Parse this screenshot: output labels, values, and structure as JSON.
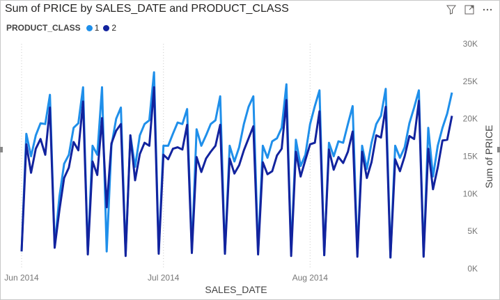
{
  "header": {
    "title": "Sum of PRICE by SALES_DATE and PRODUCT_CLASS",
    "icons": [
      "filter-icon",
      "focus-mode-icon",
      "more-options-icon"
    ]
  },
  "legend": {
    "title": "PRODUCT_CLASS",
    "items": [
      {
        "label": "1",
        "color": "#1f8fea"
      },
      {
        "label": "2",
        "color": "#12239e"
      }
    ]
  },
  "chart_data": {
    "type": "line",
    "title": "Sum of PRICE by SALES_DATE and PRODUCT_CLASS",
    "xlabel": "SALES_DATE",
    "ylabel": "Sum of PRICE",
    "x_start": "2014-06-01",
    "x_ticks": [
      {
        "label": "Jun 2014",
        "date": "2014-06-01"
      },
      {
        "label": "Jul 2014",
        "date": "2014-07-01"
      },
      {
        "label": "Aug 2014",
        "date": "2014-08-01"
      }
    ],
    "y_ticks": [
      {
        "label": "0K",
        "value": 0
      },
      {
        "label": "5K",
        "value": 5000
      },
      {
        "label": "10K",
        "value": 10000
      },
      {
        "label": "15K",
        "value": 15000
      },
      {
        "label": "20K",
        "value": 20000
      },
      {
        "label": "25K",
        "value": 25000
      },
      {
        "label": "30K",
        "value": 30000
      }
    ],
    "ylim": [
      0,
      30000
    ],
    "legend_position": "top-left",
    "series": [
      {
        "name": "1",
        "color": "#1f8fea",
        "values": [
          2300,
          18000,
          15000,
          17800,
          19400,
          19300,
          23200,
          3000,
          9600,
          14000,
          15200,
          18800,
          19400,
          24200,
          2000,
          16400,
          15200,
          24200,
          2300,
          16400,
          20000,
          21500,
          2000,
          17800,
          13600,
          17800,
          19300,
          19800,
          26200,
          2300,
          16400,
          16400,
          18000,
          19500,
          19300,
          21300,
          2300,
          18600,
          16400,
          17800,
          19300,
          19800,
          23000,
          2000,
          16400,
          14300,
          16200,
          19300,
          21600,
          23000,
          2100,
          16400,
          14800,
          17000,
          17400,
          18800,
          24600,
          2200,
          17200,
          13700,
          15200,
          19300,
          21700,
          23800,
          1800,
          16800,
          15000,
          17000,
          16800,
          19300,
          21700,
          2000,
          16400,
          13300,
          16800,
          19300,
          20400,
          24000,
          1500,
          16400,
          14800,
          16200,
          19400,
          21500,
          23800,
          1700,
          18800,
          12300,
          16400,
          18800,
          20700,
          23500
        ],
        "y_note": "values read approximately from chart"
      },
      {
        "name": "2",
        "color": "#12239e",
        "values": [
          2300,
          16600,
          12800,
          16000,
          17300,
          15200,
          21500,
          2800,
          7800,
          12100,
          13500,
          16900,
          15800,
          22300,
          1900,
          14300,
          12500,
          20100,
          8200,
          16700,
          18400,
          19300,
          1700,
          17800,
          11800,
          15300,
          16800,
          16400,
          24200,
          2000,
          15200,
          14600,
          16000,
          16200,
          15900,
          19200,
          2100,
          14900,
          12900,
          14700,
          15600,
          16400,
          19200,
          2000,
          14700,
          12700,
          13800,
          15800,
          17400,
          19000,
          1900,
          14200,
          12600,
          13000,
          15100,
          16000,
          22500,
          1700,
          15600,
          12300,
          14500,
          16600,
          16800,
          21000,
          1800,
          15900,
          13200,
          14900,
          14100,
          15600,
          18300,
          1600,
          15600,
          12100,
          14200,
          17800,
          17500,
          21600,
          1500,
          14600,
          13000,
          15000,
          17700,
          17300,
          22400,
          1600,
          16000,
          10600,
          13500,
          17100,
          17200,
          20400
        ]
      }
    ]
  }
}
